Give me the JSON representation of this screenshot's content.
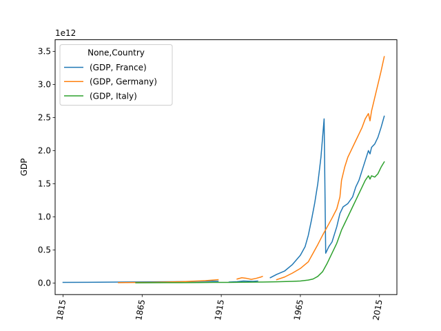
{
  "chart_data": {
    "type": "line",
    "title": "",
    "xlabel": "",
    "ylabel": "GDP",
    "y_offset_label": "1e12",
    "xlim": [
      1810,
      2026
    ],
    "ylim": [
      -0.175,
      3.675
    ],
    "y_unit_multiplier": 1000000000000.0,
    "x_ticks": [
      1815,
      1865,
      1915,
      1965,
      2015
    ],
    "x_tick_labels": [
      "1815",
      "1865",
      "1915",
      "1965",
      "2015"
    ],
    "y_ticks": [
      0.0,
      0.5,
      1.0,
      1.5,
      2.0,
      2.5,
      3.0,
      3.5
    ],
    "y_tick_labels": [
      "0.0",
      "0.5",
      "1.0",
      "1.5",
      "2.0",
      "2.5",
      "3.0",
      "3.5"
    ],
    "x_tick_rotation": "vertical-ish (~80°)",
    "grid": false,
    "legend": {
      "title": "None,Country",
      "placement": "top-left"
    },
    "series": [
      {
        "name": "(GDP, France)",
        "color": "#1f77b4",
        "segments": [
          [
            [
              1815,
              0.01
            ],
            [
              1830,
              0.011
            ],
            [
              1845,
              0.013
            ],
            [
              1860,
              0.016
            ],
            [
              1870,
              0.017
            ],
            [
              1875,
              0.019
            ],
            [
              1885,
              0.02
            ],
            [
              1895,
              0.022
            ],
            [
              1900,
              0.025
            ],
            [
              1910,
              0.027
            ],
            [
              1913,
              0.028
            ]
          ],
          [
            [
              1920,
              0.015
            ],
            [
              1925,
              0.02
            ],
            [
              1929,
              0.03
            ],
            [
              1935,
              0.025
            ],
            [
              1938,
              0.03
            ]
          ],
          [
            [
              1946,
              0.08
            ],
            [
              1950,
              0.13
            ],
            [
              1955,
              0.18
            ],
            [
              1960,
              0.28
            ],
            [
              1965,
              0.42
            ],
            [
              1968,
              0.55
            ],
            [
              1970,
              0.72
            ],
            [
              1972,
              0.95
            ],
            [
              1974,
              1.2
            ],
            [
              1976,
              1.5
            ],
            [
              1978,
              1.9
            ],
            [
              1980,
              2.48
            ],
            [
              1981,
              0.45
            ],
            [
              1983,
              0.55
            ],
            [
              1985,
              0.62
            ],
            [
              1988,
              0.85
            ],
            [
              1990,
              1.05
            ],
            [
              1992,
              1.15
            ],
            [
              1995,
              1.2
            ],
            [
              1998,
              1.3
            ],
            [
              2000,
              1.45
            ],
            [
              2002,
              1.55
            ],
            [
              2004,
              1.7
            ],
            [
              2006,
              1.85
            ],
            [
              2008,
              2.0
            ],
            [
              2009,
              1.95
            ],
            [
              2010,
              2.05
            ],
            [
              2012,
              2.1
            ],
            [
              2014,
              2.2
            ],
            [
              2016,
              2.35
            ],
            [
              2018,
              2.52
            ]
          ]
        ]
      },
      {
        "name": "(GDP, Germany)",
        "color": "#ff7f0e",
        "segments": [
          [
            [
              1850,
              0.005
            ],
            [
              1860,
              0.008
            ],
            [
              1870,
              0.01
            ],
            [
              1880,
              0.015
            ],
            [
              1890,
              0.02
            ],
            [
              1900,
              0.03
            ],
            [
              1905,
              0.035
            ],
            [
              1910,
              0.045
            ],
            [
              1913,
              0.05
            ]
          ],
          [
            [
              1925,
              0.06
            ],
            [
              1928,
              0.08
            ],
            [
              1931,
              0.07
            ],
            [
              1934,
              0.055
            ],
            [
              1937,
              0.07
            ],
            [
              1940,
              0.09
            ],
            [
              1941,
              0.1
            ]
          ],
          [
            [
              1950,
              0.05
            ],
            [
              1955,
              0.09
            ],
            [
              1960,
              0.15
            ],
            [
              1965,
              0.22
            ],
            [
              1970,
              0.32
            ],
            [
              1973,
              0.45
            ],
            [
              1976,
              0.58
            ],
            [
              1979,
              0.72
            ],
            [
              1982,
              0.85
            ],
            [
              1985,
              0.98
            ],
            [
              1988,
              1.12
            ],
            [
              1990,
              1.3
            ],
            [
              1991,
              1.55
            ],
            [
              1993,
              1.75
            ],
            [
              1995,
              1.9
            ],
            [
              1997,
              2.0
            ],
            [
              2000,
              2.15
            ],
            [
              2002,
              2.25
            ],
            [
              2004,
              2.35
            ],
            [
              2006,
              2.48
            ],
            [
              2008,
              2.56
            ],
            [
              2009,
              2.45
            ],
            [
              2010,
              2.6
            ],
            [
              2012,
              2.8
            ],
            [
              2014,
              3.0
            ],
            [
              2016,
              3.2
            ],
            [
              2018,
              3.42
            ]
          ]
        ]
      },
      {
        "name": "(GDP, Italy)",
        "color": "#2ca02c",
        "segments": [
          [
            [
              1861,
              0.003
            ],
            [
              1870,
              0.004
            ],
            [
              1880,
              0.005
            ],
            [
              1890,
              0.006
            ],
            [
              1900,
              0.007
            ],
            [
              1910,
              0.009
            ],
            [
              1920,
              0.01
            ],
            [
              1930,
              0.012
            ],
            [
              1940,
              0.014
            ],
            [
              1950,
              0.018
            ],
            [
              1960,
              0.025
            ],
            [
              1965,
              0.03
            ],
            [
              1970,
              0.045
            ],
            [
              1973,
              0.06
            ],
            [
              1976,
              0.1
            ],
            [
              1979,
              0.17
            ],
            [
              1982,
              0.3
            ],
            [
              1985,
              0.45
            ],
            [
              1988,
              0.6
            ],
            [
              1991,
              0.8
            ],
            [
              1993,
              0.9
            ],
            [
              1995,
              1.0
            ],
            [
              1998,
              1.15
            ],
            [
              2000,
              1.25
            ],
            [
              2002,
              1.35
            ],
            [
              2004,
              1.45
            ],
            [
              2006,
              1.55
            ],
            [
              2008,
              1.62
            ],
            [
              2009,
              1.57
            ],
            [
              2010,
              1.62
            ],
            [
              2012,
              1.6
            ],
            [
              2014,
              1.65
            ],
            [
              2016,
              1.75
            ],
            [
              2018,
              1.83
            ]
          ]
        ]
      }
    ]
  }
}
